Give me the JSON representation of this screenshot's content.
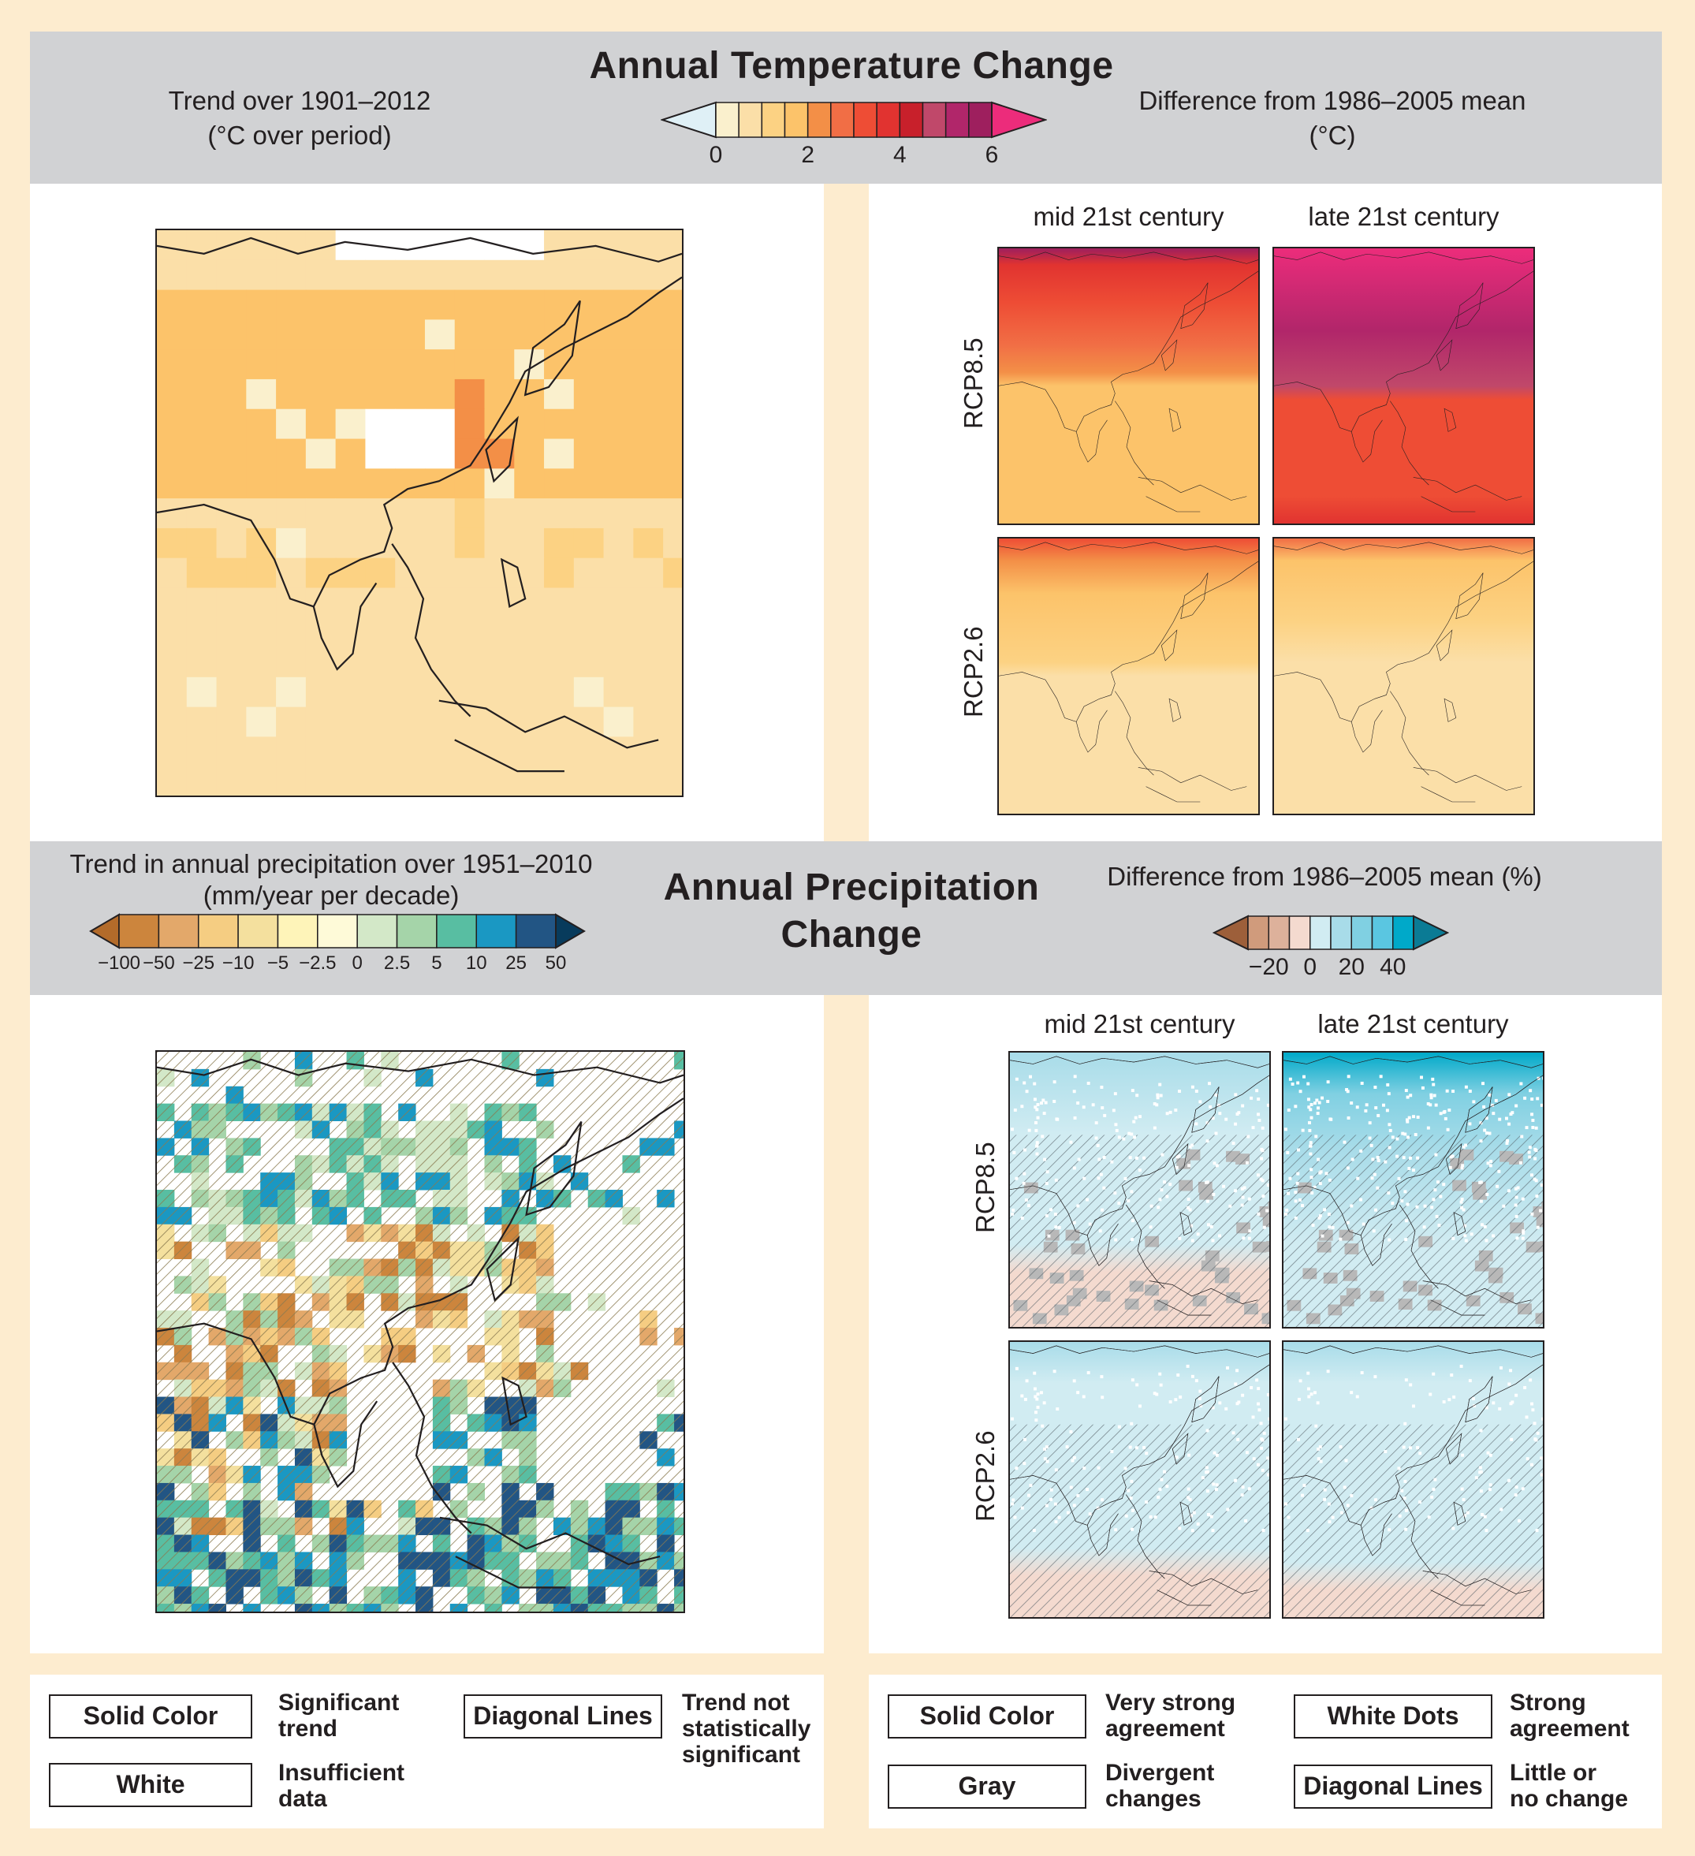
{
  "temperature": {
    "title": "Annual Temperature Change",
    "left_subtitle_1": "Trend over 1901–2012",
    "left_subtitle_2": "(°C over period)",
    "right_subtitle_1": "Difference from 1986–2005 mean",
    "right_subtitle_2": "(°C)",
    "colorbar": {
      "colors": [
        "#dff0f6",
        "#faf0cd",
        "#fbdfa8",
        "#fcd283",
        "#fcc36a",
        "#f38f47",
        "#f16e45",
        "#ee4d35",
        "#e13330",
        "#c8202b",
        "#c0486a",
        "#b1266a",
        "#9e1f5e",
        "#ec2c7b"
      ],
      "ticks": [
        "0",
        "2",
        "4",
        "6"
      ]
    },
    "col_labels": [
      "mid 21st century",
      "late 21st century"
    ],
    "row_labels": [
      "RCP8.5",
      "RCP2.6"
    ]
  },
  "precipitation": {
    "title_1": "Annual Precipitation",
    "title_2": "Change",
    "left_subtitle_1": "Trend in annual precipitation over 1951–2010",
    "left_subtitle_2": "(mm/year per decade)",
    "right_subtitle": "Difference from 1986–2005 mean (%)",
    "left_colorbar": {
      "colors": [
        "#b36b2a",
        "#cc853d",
        "#e3a86a",
        "#f5cd82",
        "#f4e09e",
        "#fef4b9",
        "#fefad8",
        "#d3e8c8",
        "#a5d4a9",
        "#58bea2",
        "#1a98c3",
        "#225584",
        "#083b5c"
      ],
      "ticks": [
        "−100",
        "−50",
        "−25",
        "−10",
        "−5",
        "−2.5",
        "0",
        "2.5",
        "5",
        "10",
        "25",
        "50"
      ]
    },
    "right_colorbar": {
      "colors": [
        "#9d5f3a",
        "#d09b7c",
        "#ddb19b",
        "#f4dacf",
        "#d1ecf2",
        "#a8dce9",
        "#80d0e2",
        "#5ac6e1",
        "#00a9c9",
        "#0b7b95"
      ],
      "ticks": [
        "−20",
        "0",
        "20",
        "40"
      ]
    },
    "col_labels": [
      "mid 21st century",
      "late 21st century"
    ],
    "row_labels": [
      "RCP8.5",
      "RCP2.6"
    ]
  },
  "legend_left": [
    {
      "box": "Solid Color",
      "text_1": "Significant",
      "text_2": "trend"
    },
    {
      "box": "White",
      "text_1": "Insufficient",
      "text_2": "data"
    },
    {
      "box": "Diagonal Lines",
      "text_1": "Trend not",
      "text_2": "statistically",
      "text_3": "significant"
    }
  ],
  "legend_right": [
    {
      "box": "Solid Color",
      "text_1": "Very strong",
      "text_2": "agreement"
    },
    {
      "box": "Gray",
      "text_1": "Divergent",
      "text_2": "changes"
    },
    {
      "box": "White Dots",
      "text_1": "Strong",
      "text_2": "agreement"
    },
    {
      "box": "Diagonal Lines",
      "text_1": "Little or",
      "text_2": "no change"
    }
  ]
}
